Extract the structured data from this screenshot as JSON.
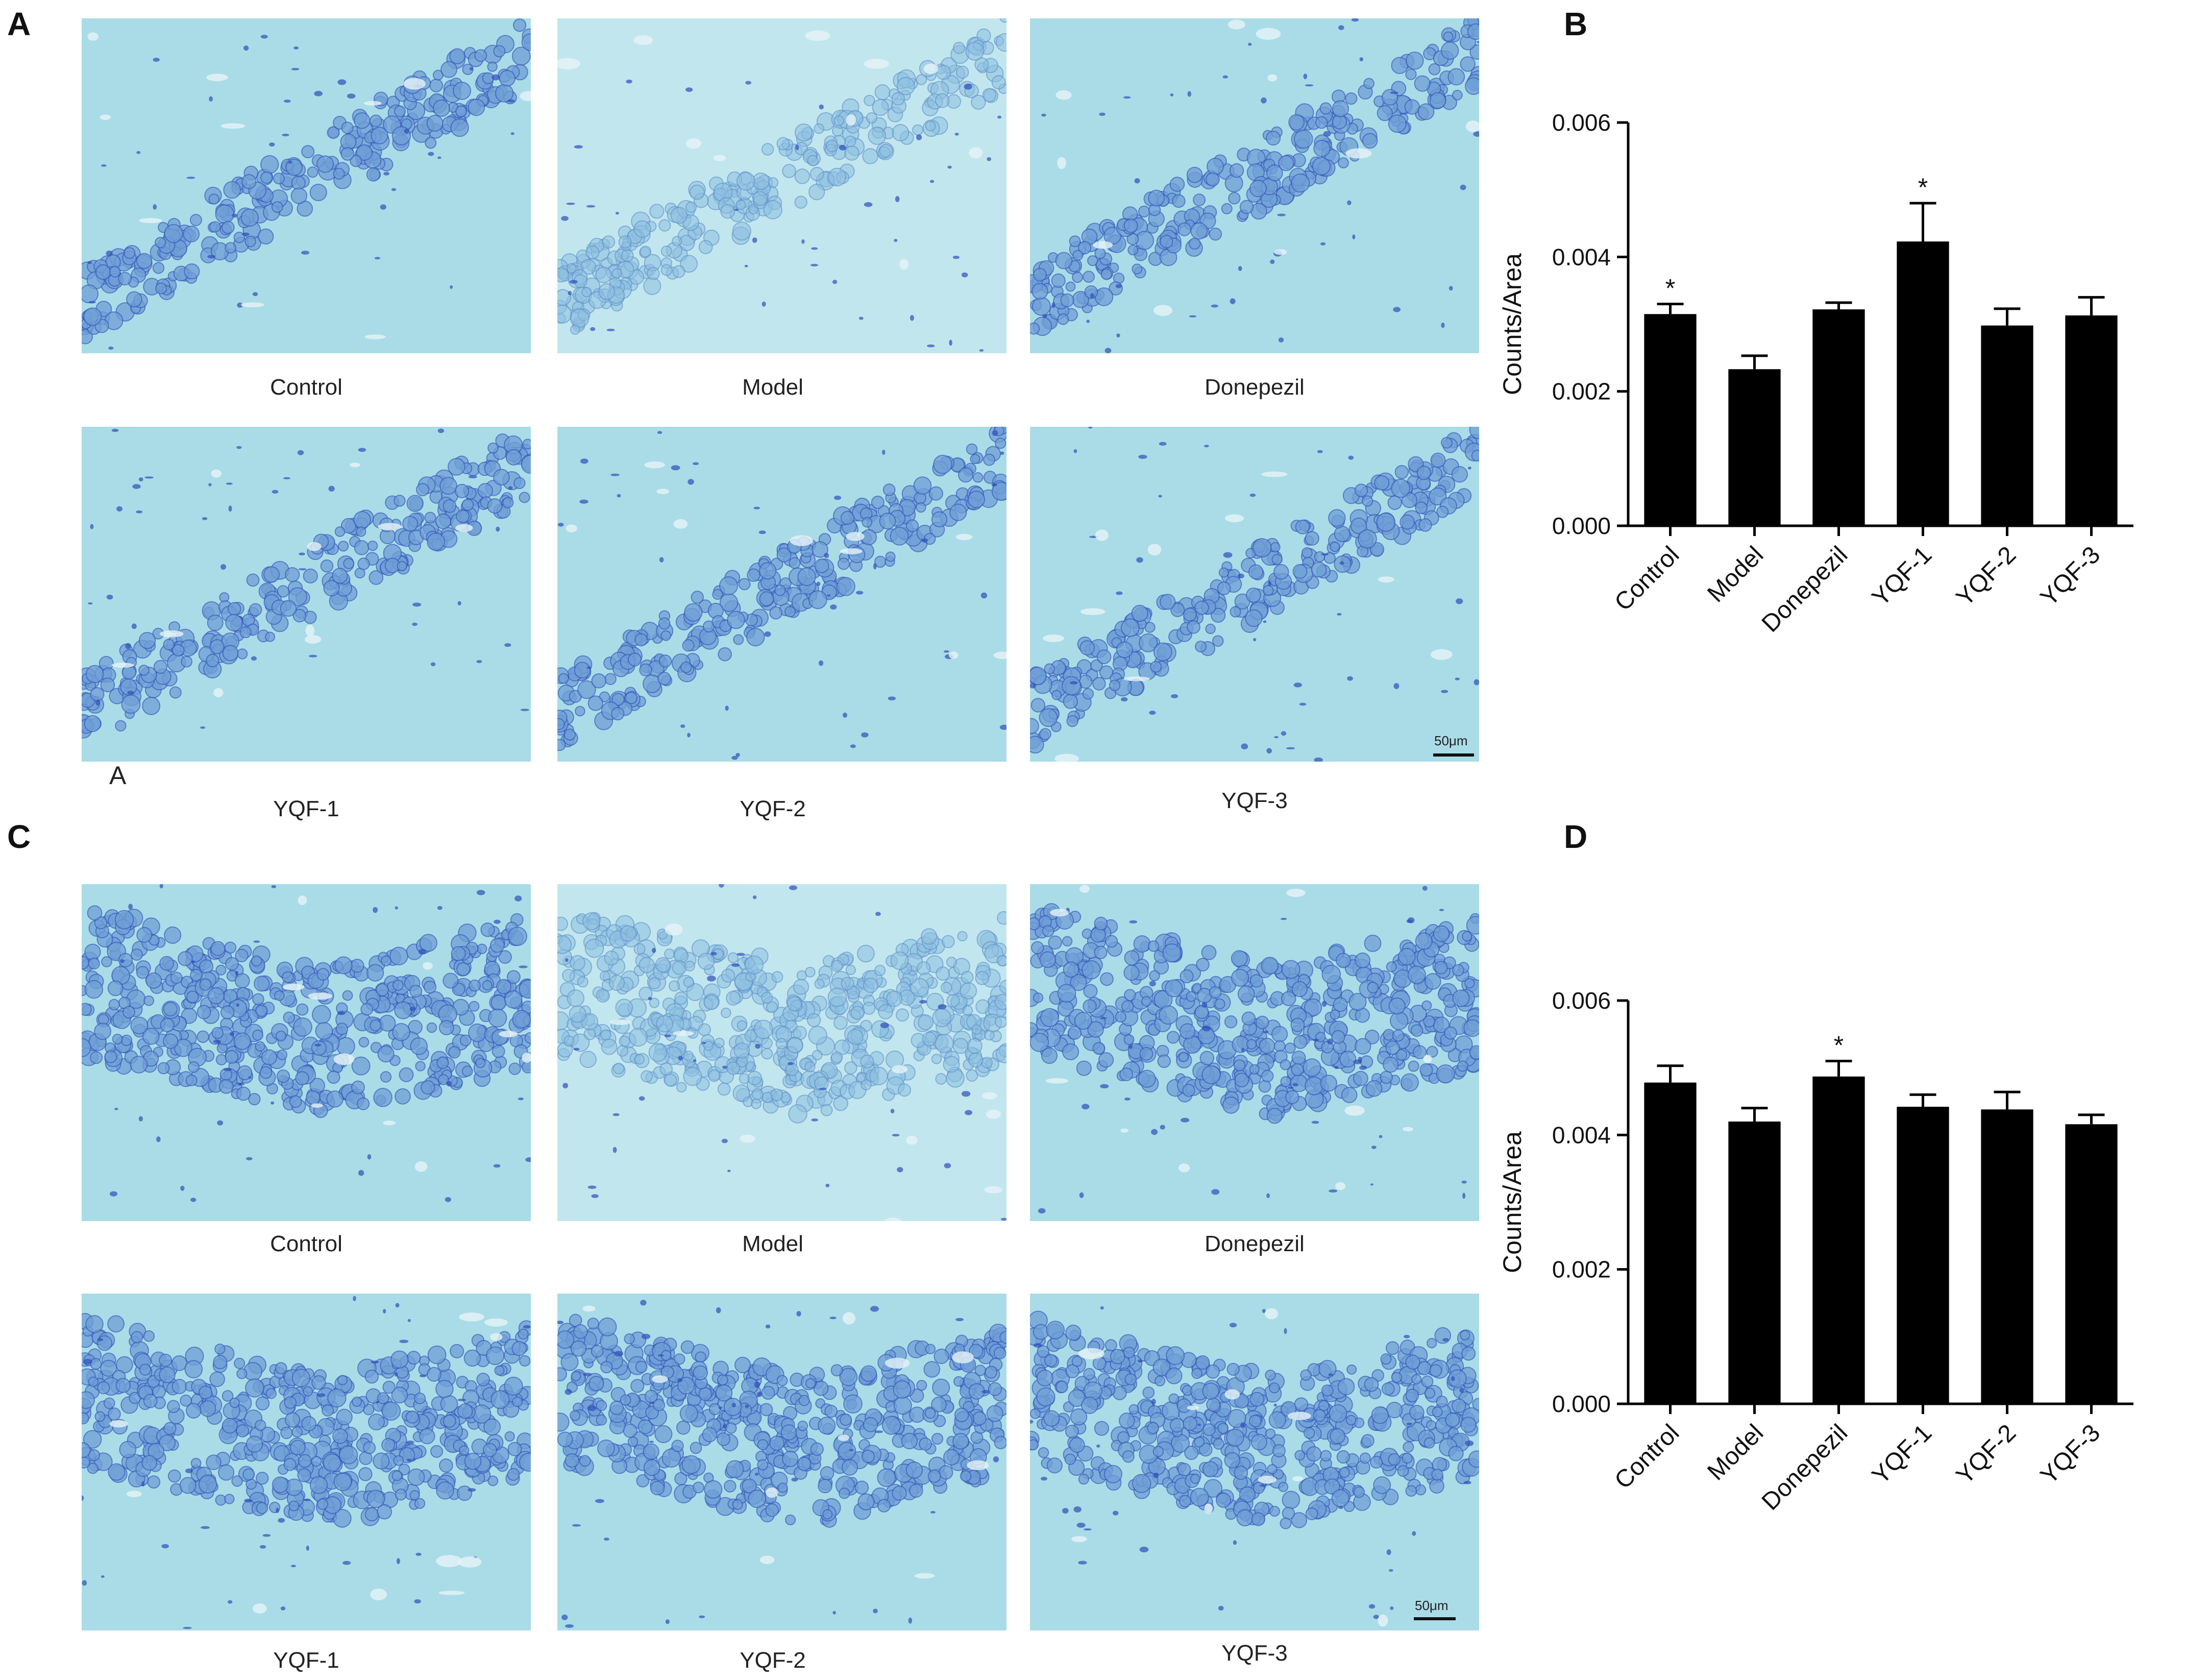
{
  "panels": {
    "A": {
      "letter": "A",
      "images": [
        {
          "caption": "Control",
          "texture": "ca1-dense"
        },
        {
          "caption": "Model",
          "texture": "ca1-pale"
        },
        {
          "caption": "Donepezil",
          "texture": "ca1-dense"
        },
        {
          "caption": "YQF-1",
          "texture": "ca1-dense"
        },
        {
          "caption": "YQF-2",
          "texture": "ca1-dense"
        },
        {
          "caption": "YQF-3",
          "texture": "ca1-dense"
        }
      ],
      "stray_label": "A",
      "scale_bar": "50μm"
    },
    "B": {
      "letter": "B"
    },
    "C": {
      "letter": "C",
      "images": [
        {
          "caption": "Control",
          "texture": "dg-dense"
        },
        {
          "caption": "Model",
          "texture": "dg-pale"
        },
        {
          "caption": "Donepezil",
          "texture": "dg-dense"
        },
        {
          "caption": "YQF-1",
          "texture": "dg-dense"
        },
        {
          "caption": "YQF-2",
          "texture": "dg-dense"
        },
        {
          "caption": "YQF-3",
          "texture": "dg-dense"
        }
      ],
      "scale_bar": "50μm"
    },
    "D": {
      "letter": "D"
    }
  },
  "colors": {
    "tissue_bg": "#a9dce7",
    "tissue_bg_light": "#c2e6ee",
    "cell_fill": "#6f9fd6",
    "cell_dark": "#2f4fb8",
    "bar_fill": "#000000"
  },
  "chart_data": [
    {
      "panel": "B",
      "type": "bar",
      "categories": [
        "Control",
        "Model",
        "Donepezil",
        "YQF-1",
        "YQF-2",
        "YQF-3"
      ],
      "values": [
        0.00315,
        0.00233,
        0.00322,
        0.00423,
        0.00298,
        0.00313
      ],
      "errors": [
        0.00015,
        0.0002,
        0.0001,
        0.00057,
        0.00025,
        0.00027
      ],
      "annotations": [
        "*",
        "",
        "",
        "*",
        "",
        ""
      ],
      "ylabel": "Counts/Area",
      "xlabel": "",
      "ylim": [
        0,
        0.006
      ],
      "yticks": [
        "0.000",
        "0.002",
        "0.004",
        "0.006"
      ],
      "grid": false
    },
    {
      "panel": "D",
      "type": "bar",
      "categories": [
        "Control",
        "Model",
        "Donepezil",
        "YQF-1",
        "YQF-2",
        "YQF-3"
      ],
      "values": [
        0.00478,
        0.0042,
        0.00487,
        0.00442,
        0.00438,
        0.00416
      ],
      "errors": [
        0.00025,
        0.0002,
        0.00023,
        0.00018,
        0.00026,
        0.00014
      ],
      "annotations": [
        "",
        "",
        "*",
        "",
        "",
        ""
      ],
      "ylabel": "Counts/Area",
      "xlabel": "",
      "ylim": [
        0,
        0.006
      ],
      "yticks": [
        "0.000",
        "0.002",
        "0.004",
        "0.006"
      ],
      "grid": false
    }
  ]
}
